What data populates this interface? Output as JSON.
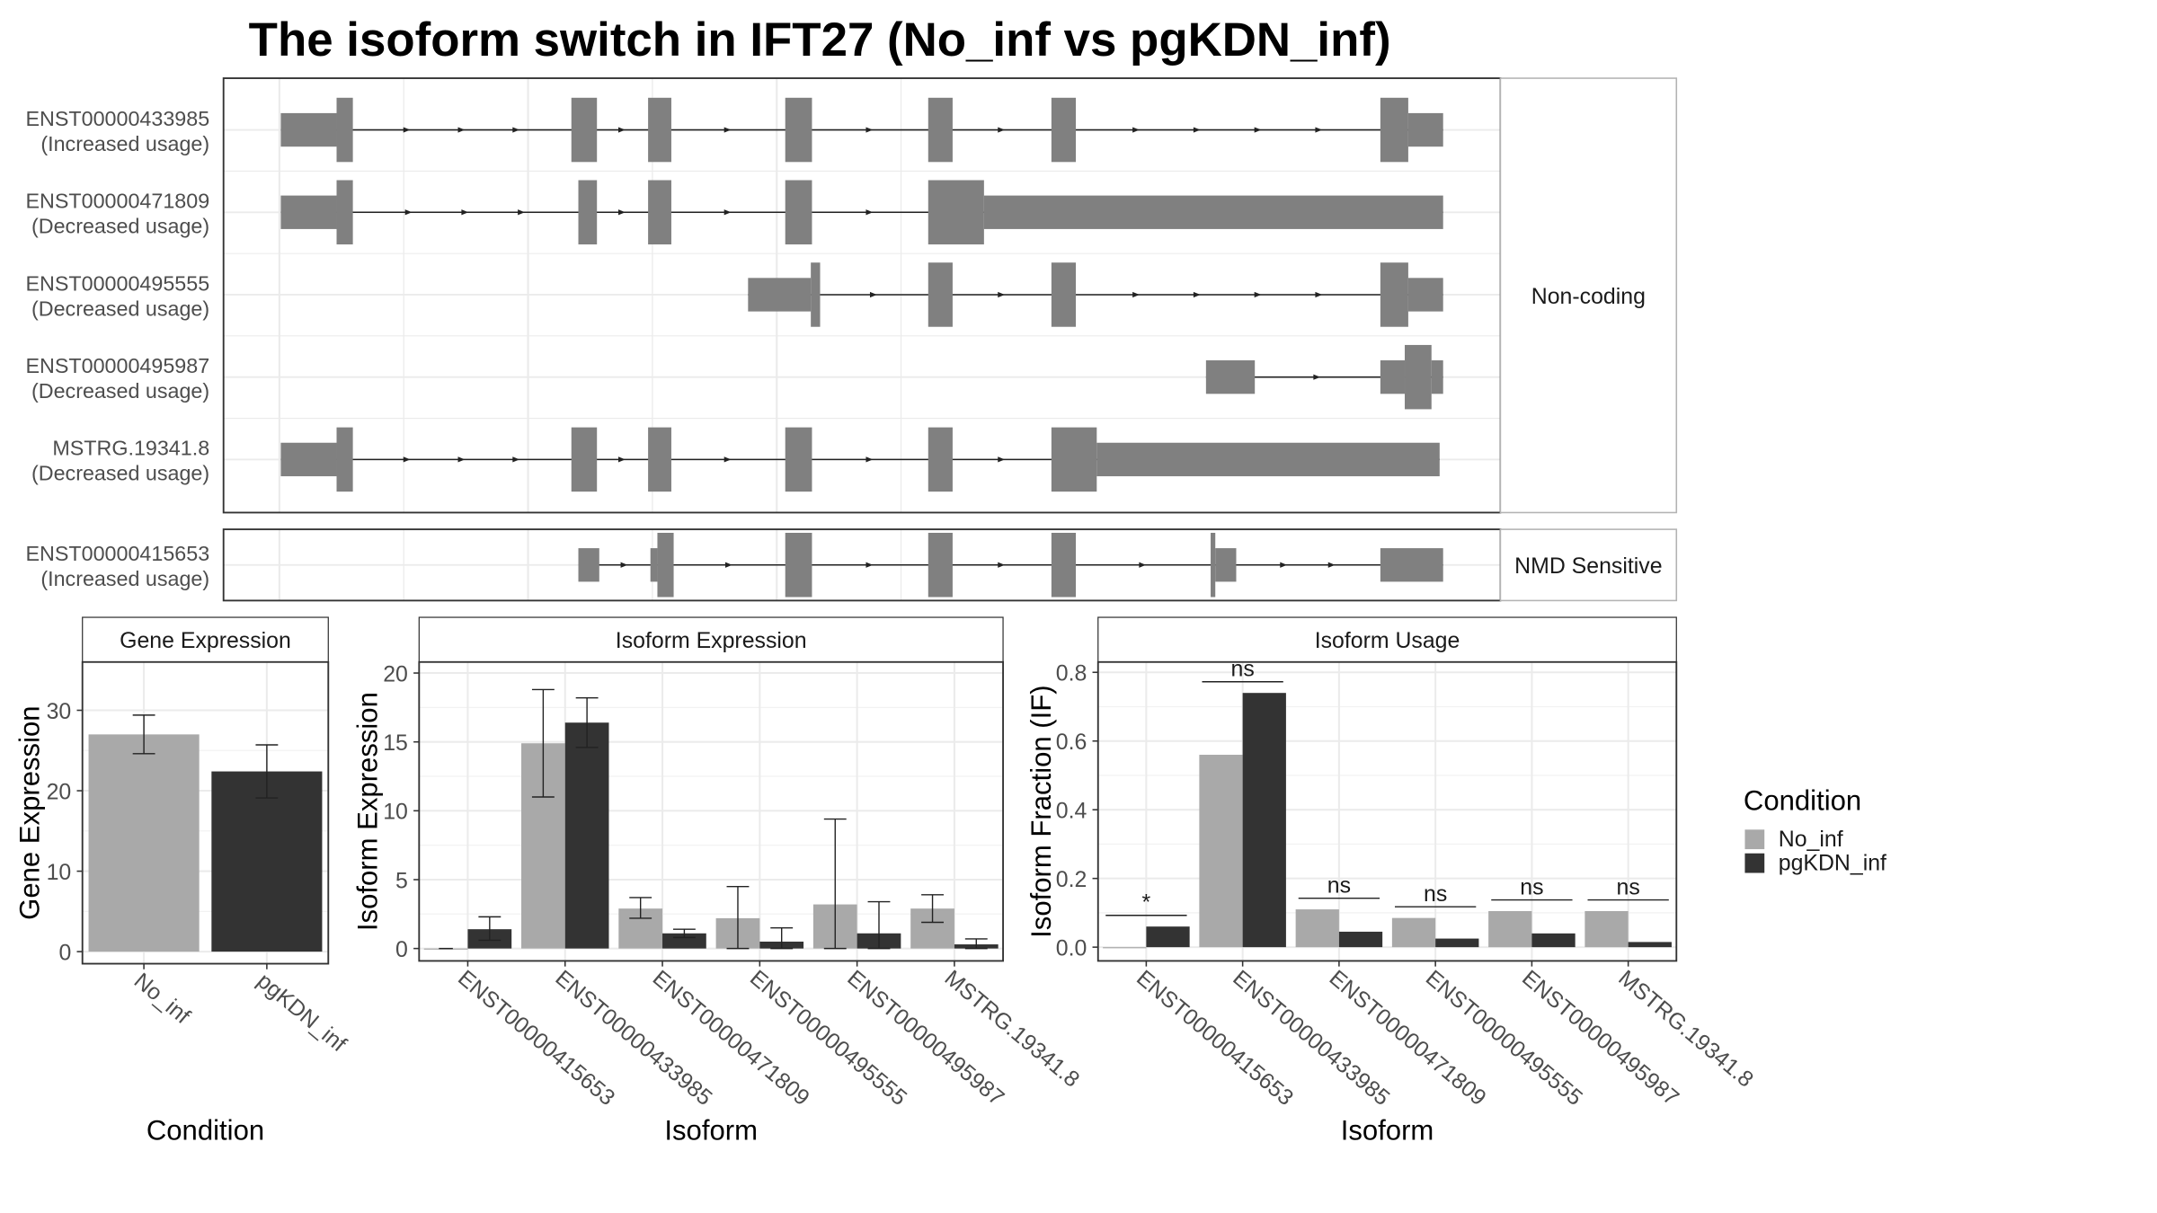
{
  "title": "The isoform switch in IFT27 (No_inf vs pgKDN_inf)",
  "colors": {
    "no_inf": "#a9a9a9",
    "pgkdn_inf": "#333333",
    "structure": "#808080",
    "grid": "#ebebeb",
    "strip_bg": "#ffffff",
    "panel_border": "#333333"
  },
  "structure": {
    "groups": [
      {
        "label": "Non-coding",
        "tracks": [
          {
            "id": "ENST00000433985",
            "usage": "(Increased usage)",
            "exons": [
              {
                "start": 0.0,
                "end": 4.8,
                "h": "thin"
              },
              {
                "start": 4.8,
                "end": 6.2,
                "h": "thick"
              },
              {
                "start": 25.0,
                "end": 27.2,
                "h": "thick"
              },
              {
                "start": 31.6,
                "end": 33.6,
                "h": "thick"
              },
              {
                "start": 43.4,
                "end": 45.7,
                "h": "thick"
              },
              {
                "start": 55.7,
                "end": 57.8,
                "h": "thick"
              },
              {
                "start": 66.3,
                "end": 68.4,
                "h": "thick"
              },
              {
                "start": 94.6,
                "end": 97.0,
                "h": "thick"
              },
              {
                "start": 97.0,
                "end": 100.0,
                "h": "thin"
              }
            ]
          },
          {
            "id": "ENST00000471809",
            "usage": "(Decreased usage)",
            "exons": [
              {
                "start": 0.0,
                "end": 4.8,
                "h": "thin"
              },
              {
                "start": 4.8,
                "end": 6.2,
                "h": "thick"
              },
              {
                "start": 25.6,
                "end": 27.2,
                "h": "thick"
              },
              {
                "start": 31.6,
                "end": 33.6,
                "h": "thick"
              },
              {
                "start": 43.4,
                "end": 45.7,
                "h": "thick"
              },
              {
                "start": 55.7,
                "end": 60.5,
                "h": "thick"
              },
              {
                "start": 60.5,
                "end": 100.0,
                "h": "thin"
              }
            ]
          },
          {
            "id": "ENST00000495555",
            "usage": "(Decreased usage)",
            "exons": [
              {
                "start": 40.2,
                "end": 45.6,
                "h": "thin"
              },
              {
                "start": 45.6,
                "end": 46.4,
                "h": "thick"
              },
              {
                "start": 55.7,
                "end": 57.8,
                "h": "thick"
              },
              {
                "start": 66.3,
                "end": 68.4,
                "h": "thick"
              },
              {
                "start": 94.6,
                "end": 97.0,
                "h": "thick"
              },
              {
                "start": 97.0,
                "end": 100.0,
                "h": "thin"
              }
            ]
          },
          {
            "id": "ENST00000495987",
            "usage": "(Decreased usage)",
            "exons": [
              {
                "start": 79.6,
                "end": 83.8,
                "h": "thin"
              },
              {
                "start": 94.6,
                "end": 96.7,
                "h": "thin"
              },
              {
                "start": 96.7,
                "end": 99.0,
                "h": "thick"
              },
              {
                "start": 99.0,
                "end": 100.0,
                "h": "thin"
              }
            ]
          },
          {
            "id": "MSTRG.19341.8",
            "usage": "(Decreased usage)",
            "exons": [
              {
                "start": 0.0,
                "end": 4.8,
                "h": "thin"
              },
              {
                "start": 4.8,
                "end": 6.2,
                "h": "thick"
              },
              {
                "start": 25.0,
                "end": 27.2,
                "h": "thick"
              },
              {
                "start": 31.6,
                "end": 33.6,
                "h": "thick"
              },
              {
                "start": 43.4,
                "end": 45.7,
                "h": "thick"
              },
              {
                "start": 55.7,
                "end": 57.8,
                "h": "thick"
              },
              {
                "start": 66.3,
                "end": 70.2,
                "h": "thick"
              },
              {
                "start": 70.2,
                "end": 99.7,
                "h": "thin"
              }
            ]
          }
        ]
      },
      {
        "label": "NMD Sensitive",
        "tracks": [
          {
            "id": "ENST00000415653",
            "usage": "(Increased usage)",
            "exons": [
              {
                "start": 25.6,
                "end": 27.4,
                "h": "thin"
              },
              {
                "start": 31.8,
                "end": 32.4,
                "h": "thin"
              },
              {
                "start": 32.4,
                "end": 33.8,
                "h": "thick"
              },
              {
                "start": 43.4,
                "end": 45.7,
                "h": "thick"
              },
              {
                "start": 55.7,
                "end": 57.8,
                "h": "thick"
              },
              {
                "start": 66.3,
                "end": 68.4,
                "h": "thick"
              },
              {
                "start": 80.0,
                "end": 80.4,
                "h": "thick"
              },
              {
                "start": 80.4,
                "end": 82.2,
                "h": "thin"
              },
              {
                "start": 94.6,
                "end": 100.0,
                "h": "thin"
              }
            ]
          }
        ]
      }
    ]
  },
  "chart_data": [
    {
      "type": "bar",
      "strip": "Gene Expression",
      "categories": [
        "No_inf",
        "pgKDN_inf"
      ],
      "xlabel": "Condition",
      "ylabel": "Gene Expression",
      "ylim": [
        -1.5,
        36
      ],
      "yticks": [
        0,
        10,
        20,
        30
      ],
      "series": [
        {
          "name": "No_inf",
          "values": [
            27.0,
            null
          ],
          "err_low": [
            24.6,
            null
          ],
          "err_high": [
            29.4,
            null
          ]
        },
        {
          "name": "pgKDN_inf",
          "values": [
            null,
            22.4
          ],
          "err_low": [
            null,
            19.1
          ],
          "err_high": [
            null,
            25.7
          ]
        }
      ]
    },
    {
      "type": "bar",
      "strip": "Isoform Expression",
      "categories": [
        "ENST00000415653",
        "ENST00000433985",
        "ENST00000471809",
        "ENST00000495555",
        "ENST00000495987",
        "MSTRG.19341.8"
      ],
      "xlabel": "Isoform",
      "ylabel": "Isoform Expression",
      "ylim": [
        -0.9,
        20.8
      ],
      "yticks": [
        0,
        5,
        10,
        15,
        20
      ],
      "series": [
        {
          "name": "No_inf",
          "values": [
            0.0,
            14.9,
            2.9,
            2.2,
            3.2,
            2.9
          ],
          "err_low": [
            0.0,
            11.0,
            2.2,
            0.0,
            0.0,
            1.9
          ],
          "err_high": [
            0.0,
            18.8,
            3.7,
            4.5,
            9.4,
            3.9
          ]
        },
        {
          "name": "pgKDN_inf",
          "values": [
            1.4,
            16.4,
            1.1,
            0.5,
            1.1,
            0.3
          ],
          "err_low": [
            0.6,
            14.6,
            0.8,
            0.0,
            0.0,
            0.0
          ],
          "err_high": [
            2.3,
            18.2,
            1.4,
            1.5,
            3.4,
            0.7
          ]
        }
      ]
    },
    {
      "type": "bar",
      "strip": "Isoform Usage",
      "categories": [
        "ENST00000415653",
        "ENST00000433985",
        "ENST00000471809",
        "ENST00000495555",
        "ENST00000495987",
        "MSTRG.19341.8"
      ],
      "xlabel": "Isoform",
      "ylabel": "Isoform Fraction (IF)",
      "ylim": [
        -0.04,
        0.83
      ],
      "yticks": [
        0.0,
        0.2,
        0.4,
        0.6,
        0.8
      ],
      "ytick_labels": [
        "0.0",
        "0.2",
        "0.4",
        "0.6",
        "0.8"
      ],
      "series": [
        {
          "name": "No_inf",
          "values": [
            0.0,
            0.56,
            0.11,
            0.085,
            0.105,
            0.105
          ]
        },
        {
          "name": "pgKDN_inf",
          "values": [
            0.06,
            0.74,
            0.045,
            0.025,
            0.04,
            0.015
          ]
        }
      ],
      "significance": [
        "*",
        "ns",
        "ns",
        "ns",
        "ns",
        "ns"
      ]
    }
  ],
  "legend": {
    "title": "Condition",
    "items": [
      {
        "label": "No_inf",
        "series": "No_inf"
      },
      {
        "label": "pgKDN_inf",
        "series": "pgKDN_inf"
      }
    ]
  }
}
